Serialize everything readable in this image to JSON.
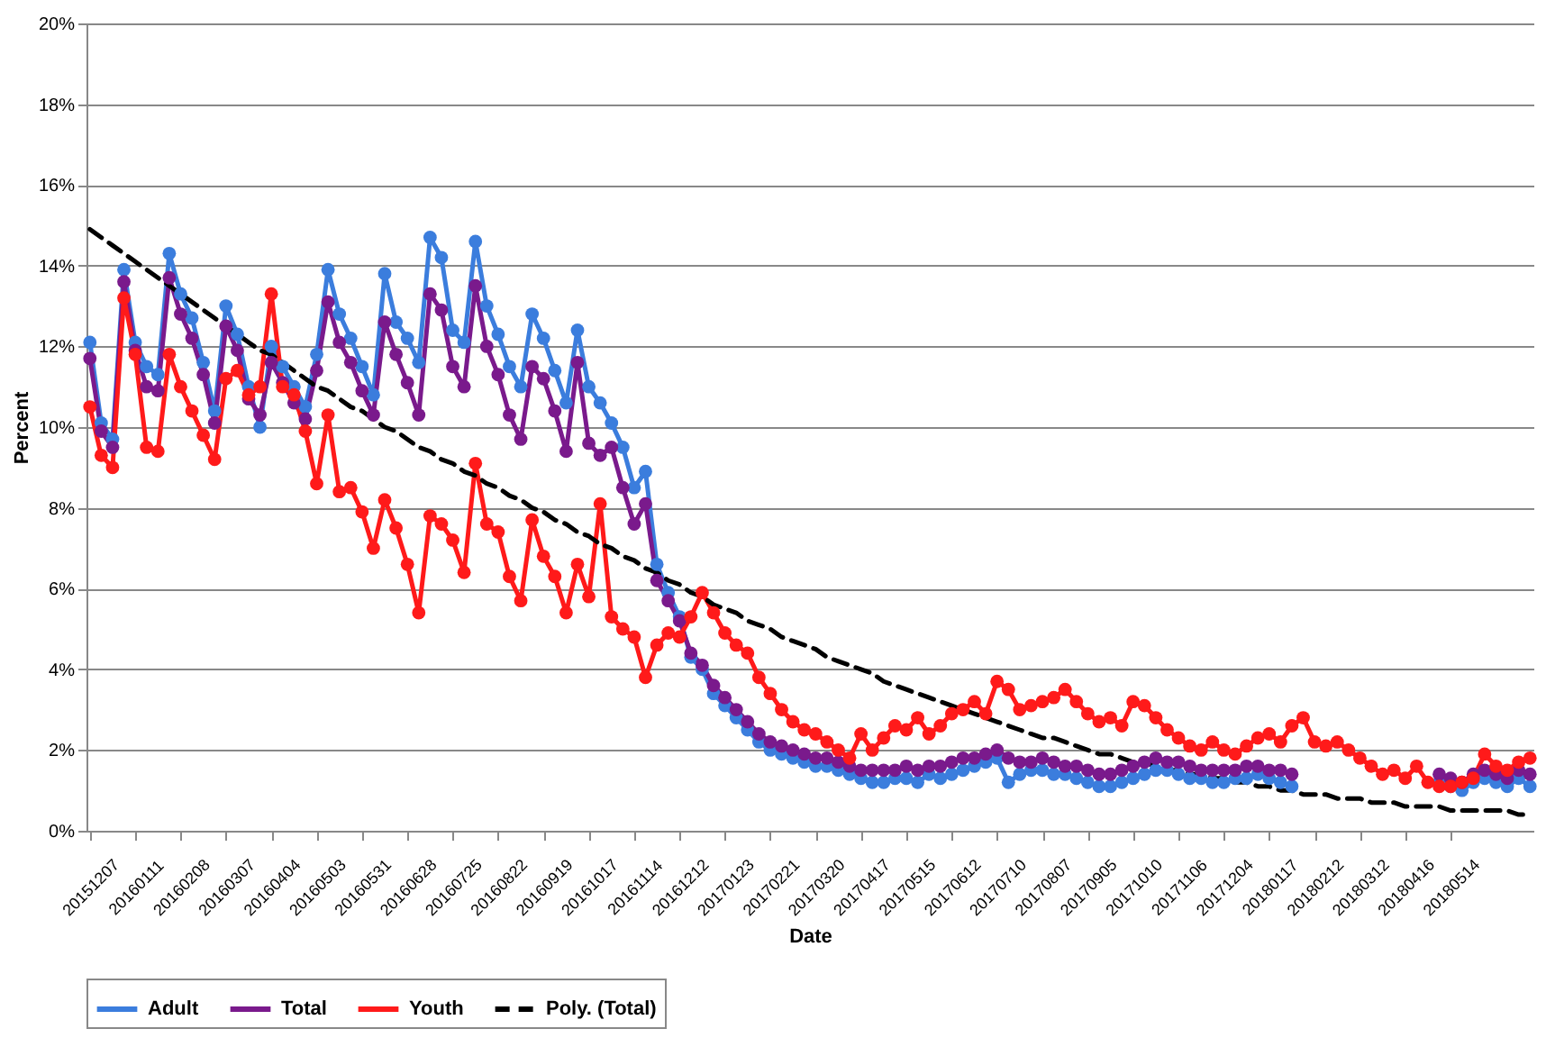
{
  "chart_data": {
    "type": "line",
    "xlabel": "Date",
    "ylabel": "Percent",
    "categories": [
      "20151207",
      null,
      null,
      null,
      "20160111",
      null,
      null,
      null,
      "20160208",
      null,
      null,
      null,
      "20160307",
      null,
      null,
      null,
      "20160404",
      null,
      null,
      null,
      "20160503",
      null,
      null,
      null,
      "20160531",
      null,
      null,
      null,
      "20160628",
      null,
      null,
      null,
      "20160725",
      null,
      null,
      null,
      "20160822",
      null,
      null,
      null,
      "20160919",
      null,
      null,
      null,
      "20161017",
      null,
      null,
      null,
      "20161114",
      null,
      null,
      null,
      "20161212",
      null,
      null,
      null,
      "20170123",
      null,
      null,
      null,
      "20170221",
      null,
      null,
      null,
      "20170320",
      null,
      null,
      null,
      "20170417",
      null,
      null,
      null,
      "20170515",
      null,
      null,
      null,
      "20170612",
      null,
      null,
      null,
      "20170710",
      null,
      null,
      null,
      "20170807",
      null,
      null,
      null,
      "20170905",
      null,
      null,
      null,
      "20171010",
      null,
      null,
      null,
      "20171106",
      null,
      null,
      null,
      "20171204",
      null,
      null,
      null,
      "20180117",
      null,
      null,
      null,
      "20180212",
      null,
      null,
      null,
      "20180312",
      null,
      null,
      null,
      "20180416",
      null,
      null,
      null,
      "20180514",
      null,
      null,
      null,
      null,
      null,
      null,
      null
    ],
    "series": [
      {
        "name": "Adult",
        "color": "#3b7ddd",
        "marker": "circle",
        "line_style": "solid",
        "values": [
          12.1,
          10.1,
          9.7,
          13.9,
          12.1,
          11.5,
          11.3,
          14.3,
          13.3,
          12.7,
          11.6,
          10.4,
          13.0,
          12.3,
          11.0,
          10.0,
          12.0,
          11.5,
          11.0,
          10.5,
          11.8,
          13.9,
          12.8,
          12.2,
          11.5,
          10.8,
          13.8,
          12.6,
          12.2,
          11.6,
          14.7,
          14.2,
          12.4,
          12.1,
          14.6,
          13.0,
          12.3,
          11.5,
          11.0,
          12.8,
          12.2,
          11.4,
          10.6,
          12.4,
          11.0,
          10.6,
          10.1,
          9.5,
          8.5,
          8.9,
          6.6,
          5.9,
          5.3,
          4.3,
          4.0,
          3.4,
          3.1,
          2.8,
          2.5,
          2.2,
          2.0,
          1.9,
          1.8,
          1.7,
          1.6,
          1.6,
          1.5,
          1.4,
          1.3,
          1.2,
          1.2,
          1.3,
          1.3,
          1.2,
          1.4,
          1.3,
          1.4,
          1.5,
          1.6,
          1.7,
          1.8,
          1.2,
          1.4,
          1.5,
          1.5,
          1.4,
          1.4,
          1.3,
          1.2,
          1.1,
          1.1,
          1.2,
          1.3,
          1.4,
          1.5,
          1.5,
          1.4,
          1.3,
          1.3,
          1.2,
          1.2,
          1.3,
          1.3,
          1.4,
          1.3,
          1.2,
          1.1,
          null,
          null,
          null,
          null,
          null,
          null,
          null,
          null,
          null,
          null,
          null,
          null,
          1.2,
          1.1,
          1.0,
          1.2,
          1.3,
          1.2,
          1.1,
          1.3,
          1.1
        ]
      },
      {
        "name": "Total",
        "color": "#7a1a8c",
        "marker": "circle",
        "line_style": "solid",
        "values": [
          11.7,
          9.9,
          9.5,
          13.6,
          11.9,
          11.0,
          10.9,
          13.7,
          12.8,
          12.2,
          11.3,
          10.1,
          12.5,
          11.9,
          10.7,
          10.3,
          11.6,
          11.1,
          10.6,
          10.2,
          11.4,
          13.1,
          12.1,
          11.6,
          10.9,
          10.3,
          12.6,
          11.8,
          11.1,
          10.3,
          13.3,
          12.9,
          11.5,
          11.0,
          13.5,
          12.0,
          11.3,
          10.3,
          9.7,
          11.5,
          11.2,
          10.4,
          9.4,
          11.6,
          9.6,
          9.3,
          9.5,
          8.5,
          7.6,
          8.1,
          6.2,
          5.7,
          5.2,
          4.4,
          4.1,
          3.6,
          3.3,
          3.0,
          2.7,
          2.4,
          2.2,
          2.1,
          2.0,
          1.9,
          1.8,
          1.8,
          1.7,
          1.6,
          1.5,
          1.5,
          1.5,
          1.5,
          1.6,
          1.5,
          1.6,
          1.6,
          1.7,
          1.8,
          1.8,
          1.9,
          2.0,
          1.8,
          1.7,
          1.7,
          1.8,
          1.7,
          1.6,
          1.6,
          1.5,
          1.4,
          1.4,
          1.5,
          1.6,
          1.7,
          1.8,
          1.7,
          1.7,
          1.6,
          1.5,
          1.5,
          1.5,
          1.5,
          1.6,
          1.6,
          1.5,
          1.5,
          1.4,
          null,
          null,
          null,
          null,
          null,
          null,
          null,
          null,
          null,
          null,
          null,
          null,
          1.4,
          1.3,
          1.2,
          1.4,
          1.5,
          1.4,
          1.3,
          1.5,
          1.4
        ]
      },
      {
        "name": "Youth",
        "color": "#ff1a1a",
        "marker": "circle",
        "line_style": "solid",
        "values": [
          10.5,
          9.3,
          9.0,
          13.2,
          11.8,
          9.5,
          9.4,
          11.8,
          11.0,
          10.4,
          9.8,
          9.2,
          11.2,
          11.4,
          10.8,
          11.0,
          13.3,
          11.0,
          10.8,
          9.9,
          8.6,
          10.3,
          8.4,
          8.5,
          7.9,
          7.0,
          8.2,
          7.5,
          6.6,
          5.4,
          7.8,
          7.6,
          7.2,
          6.4,
          9.1,
          7.6,
          7.4,
          6.3,
          5.7,
          7.7,
          6.8,
          6.3,
          5.4,
          6.6,
          5.8,
          8.1,
          5.3,
          5.0,
          4.8,
          3.8,
          4.6,
          4.9,
          4.8,
          5.3,
          5.9,
          5.4,
          4.9,
          4.6,
          4.4,
          3.8,
          3.4,
          3.0,
          2.7,
          2.5,
          2.4,
          2.2,
          2.0,
          1.8,
          2.4,
          2.0,
          2.3,
          2.6,
          2.5,
          2.8,
          2.4,
          2.6,
          2.9,
          3.0,
          3.2,
          2.9,
          3.7,
          3.5,
          3.0,
          3.1,
          3.2,
          3.3,
          3.5,
          3.2,
          2.9,
          2.7,
          2.8,
          2.6,
          3.2,
          3.1,
          2.8,
          2.5,
          2.3,
          2.1,
          2.0,
          2.2,
          2.0,
          1.9,
          2.1,
          2.3,
          2.4,
          2.2,
          2.6,
          2.8,
          2.2,
          2.1,
          2.2,
          2.0,
          1.8,
          1.6,
          1.4,
          1.5,
          1.3,
          1.6,
          1.2,
          1.1,
          1.1,
          1.2,
          1.3,
          1.9,
          1.6,
          1.5,
          1.7,
          1.8
        ]
      },
      {
        "name": "Poly. (Total)",
        "color": "#000000",
        "marker": "none",
        "line_style": "dashed",
        "values": [
          14.9,
          14.7,
          14.5,
          14.3,
          14.1,
          13.9,
          13.7,
          13.5,
          13.3,
          13.1,
          12.9,
          12.7,
          12.5,
          12.3,
          12.1,
          11.9,
          11.8,
          11.6,
          11.4,
          11.2,
          11.0,
          10.9,
          10.7,
          10.5,
          10.4,
          10.2,
          10.0,
          9.9,
          9.7,
          9.5,
          9.4,
          9.2,
          9.1,
          8.9,
          8.8,
          8.6,
          8.5,
          8.3,
          8.2,
          8.0,
          7.9,
          7.7,
          7.6,
          7.4,
          7.3,
          7.1,
          7.0,
          6.8,
          6.7,
          6.5,
          6.4,
          6.2,
          6.1,
          5.9,
          5.8,
          5.6,
          5.5,
          5.4,
          5.2,
          5.1,
          5.0,
          4.8,
          4.7,
          4.6,
          4.5,
          4.3,
          4.2,
          4.1,
          4.0,
          3.9,
          3.7,
          3.6,
          3.5,
          3.4,
          3.3,
          3.2,
          3.1,
          3.0,
          2.9,
          2.8,
          2.7,
          2.6,
          2.5,
          2.4,
          2.3,
          2.3,
          2.2,
          2.1,
          2.0,
          1.9,
          1.9,
          1.8,
          1.7,
          1.7,
          1.6,
          1.5,
          1.5,
          1.4,
          1.4,
          1.3,
          1.3,
          1.2,
          1.2,
          1.1,
          1.1,
          1.0,
          1.0,
          0.9,
          0.9,
          0.9,
          0.8,
          0.8,
          0.8,
          0.7,
          0.7,
          0.7,
          0.6,
          0.6,
          0.6,
          0.6,
          0.5,
          0.5,
          0.5,
          0.5,
          0.5,
          0.5,
          0.4,
          0.4
        ]
      }
    ],
    "ylim": [
      0,
      20
    ],
    "yticks": [
      {
        "value": 0,
        "label": "0%"
      },
      {
        "value": 2,
        "label": "2%"
      },
      {
        "value": 4,
        "label": "4%"
      },
      {
        "value": 6,
        "label": "6%"
      },
      {
        "value": 8,
        "label": "8%"
      },
      {
        "value": 10,
        "label": "10%"
      },
      {
        "value": 12,
        "label": "12%"
      },
      {
        "value": 14,
        "label": "14%"
      },
      {
        "value": 16,
        "label": "16%"
      },
      {
        "value": 18,
        "label": "18%"
      },
      {
        "value": 20,
        "label": "20%"
      }
    ],
    "grid": "y",
    "legend": "bottom"
  }
}
